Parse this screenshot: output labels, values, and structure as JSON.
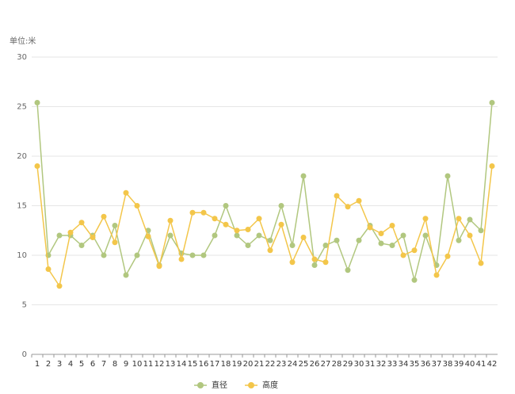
{
  "chart_data": {
    "type": "line",
    "y_label": "单位:米",
    "categories": [
      "1",
      "2",
      "3",
      "4",
      "5",
      "6",
      "7",
      "8",
      "9",
      "10",
      "11",
      "12",
      "13",
      "14",
      "15",
      "16",
      "17",
      "18",
      "19",
      "20",
      "21",
      "22",
      "23",
      "24",
      "25",
      "26",
      "27",
      "28",
      "29",
      "30",
      "31",
      "32",
      "33",
      "34",
      "35",
      "36",
      "37",
      "38",
      "39",
      "40",
      "41",
      "42"
    ],
    "series": [
      {
        "name": "直径",
        "color": "#b1c77f",
        "values": [
          25.4,
          10,
          12,
          12,
          11,
          12,
          10,
          13,
          8,
          10,
          12.5,
          9,
          12,
          10.2,
          10,
          10,
          12,
          15,
          12,
          11,
          12,
          11.5,
          15,
          11,
          18,
          9,
          11,
          11.5,
          8.5,
          11.5,
          13,
          11.2,
          11,
          12,
          7.5,
          12,
          9,
          18,
          11.5,
          13.6,
          12.5,
          25.4
        ]
      },
      {
        "name": "高度",
        "color": "#f3c64a",
        "values": [
          19,
          8.6,
          6.9,
          12.3,
          13.3,
          11.8,
          13.9,
          11.3,
          16.3,
          15,
          11.9,
          8.9,
          13.5,
          9.6,
          14.3,
          14.3,
          13.7,
          13.1,
          12.5,
          12.6,
          13.7,
          10.5,
          13.1,
          9.3,
          11.8,
          9.6,
          9.3,
          16,
          14.9,
          15.5,
          12.8,
          12.2,
          13,
          10,
          10.5,
          13.7,
          8,
          9.9,
          13.7,
          12,
          9.2,
          19
        ]
      }
    ],
    "ylim": [
      0,
      30
    ],
    "yticks": [
      0,
      5,
      10,
      15,
      20,
      25,
      30
    ],
    "grid": true,
    "legend": "bottom"
  }
}
